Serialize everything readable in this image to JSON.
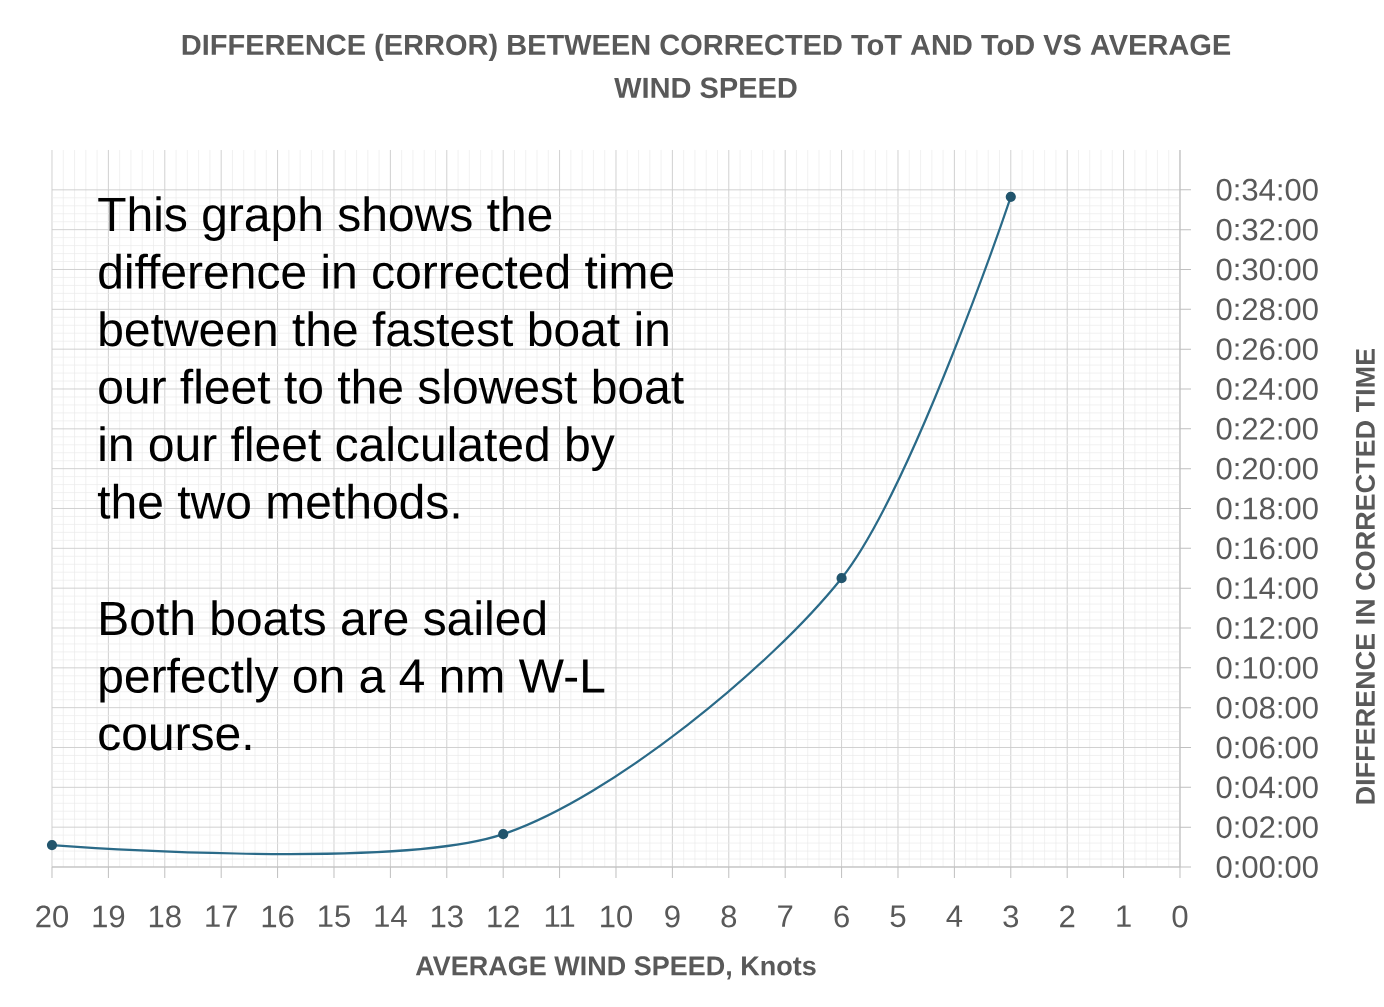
{
  "chart_data": {
    "type": "line",
    "title": "DIFFERENCE (ERROR) BETWEEN CORRECTED ToT AND ToD VS AVERAGE WIND SPEED",
    "xlabel": "AVERAGE WIND SPEED, Knots",
    "ylabel": "DIFFERENCE IN CORRECTED TIME",
    "annotations": [
      "This graph shows the difference in corrected time between the fastest boat in our fleet to the slowest boat in our fleet calculated by the two methods.",
      "Both boats are sailed perfectly on a 4 nm W-L course."
    ],
    "x": [
      20,
      12,
      6,
      3
    ],
    "series": [
      {
        "color": "#2a6a88",
        "values": [
          1.1,
          1.65,
          14.5,
          33.65
        ]
      }
    ],
    "xlim": [
      20,
      0
    ],
    "xticks": [
      20,
      19,
      18,
      17,
      16,
      15,
      14,
      13,
      12,
      11,
      10,
      9,
      8,
      7,
      6,
      5,
      4,
      3,
      2,
      1,
      0
    ],
    "ylim": [
      0,
      36
    ],
    "yticks": [
      {
        "value": 0,
        "label": "0:00:00"
      },
      {
        "value": 2,
        "label": "0:02:00"
      },
      {
        "value": 4,
        "label": "0:04:00"
      },
      {
        "value": 6,
        "label": "0:06:00"
      },
      {
        "value": 8,
        "label": "0:08:00"
      },
      {
        "value": 10,
        "label": "0:10:00"
      },
      {
        "value": 12,
        "label": "0:12:00"
      },
      {
        "value": 14,
        "label": "0:14:00"
      },
      {
        "value": 16,
        "label": "0:16:00"
      },
      {
        "value": 18,
        "label": "0:18:00"
      },
      {
        "value": 20,
        "label": "0:20:00"
      },
      {
        "value": 22,
        "label": "0:22:00"
      },
      {
        "value": 24,
        "label": "0:24:00"
      },
      {
        "value": 26,
        "label": "0:26:00"
      },
      {
        "value": 28,
        "label": "0:28:00"
      },
      {
        "value": 30,
        "label": "0:30:00"
      },
      {
        "value": 32,
        "label": "0:32:00"
      },
      {
        "value": 34,
        "label": "0:34:00"
      }
    ],
    "grid": true,
    "marker": "circle"
  }
}
